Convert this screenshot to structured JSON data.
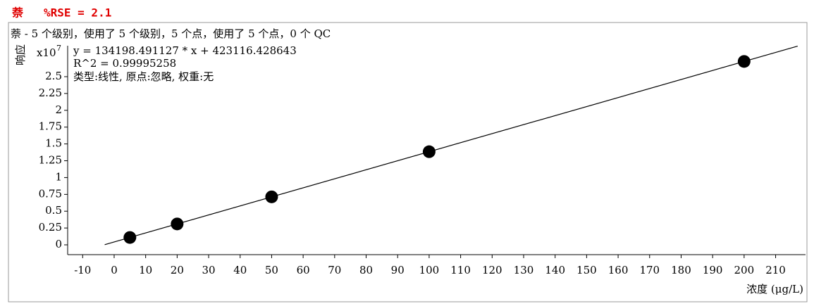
{
  "chart_data": {
    "type": "scatter",
    "title": "萘",
    "rse": "%RSE = 2.1",
    "summary": "萘 - 5 个级别，使用了 5 个级别，5 个点，使用了 5 个点，0 个 QC",
    "equation": "y = 134198.491127 * x  + 423116.428643",
    "r_squared": "R^2 = 0.99995258",
    "fit_info": "类型:线性, 原点:忽略, 权重:无",
    "y_label": "响应",
    "y_scale_label": "x10",
    "y_scale_exponent": "7",
    "x_label": "浓度 (μg/L)",
    "x": [
      5,
      20,
      50,
      100,
      200
    ],
    "values": [
      0.1094,
      0.3107,
      0.7133,
      1.3843,
      2.7263
    ],
    "color": "#000000",
    "fit_line": {
      "x": [
        -3,
        217
      ],
      "values": [
        0.0021,
        2.9544
      ],
      "color": "#000000"
    },
    "xlim": [
      -14.76,
      219.5
    ],
    "xticks": [
      -10,
      0,
      10,
      20,
      30,
      40,
      50,
      60,
      70,
      80,
      90,
      100,
      110,
      120,
      130,
      140,
      150,
      160,
      170,
      180,
      190,
      200,
      210
    ],
    "ylim": [
      -0.146,
      2.96
    ],
    "yticks": [
      0,
      0.25,
      0.5,
      0.75,
      1,
      1.25,
      1.5,
      1.75,
      2,
      2.25,
      2.5
    ]
  }
}
